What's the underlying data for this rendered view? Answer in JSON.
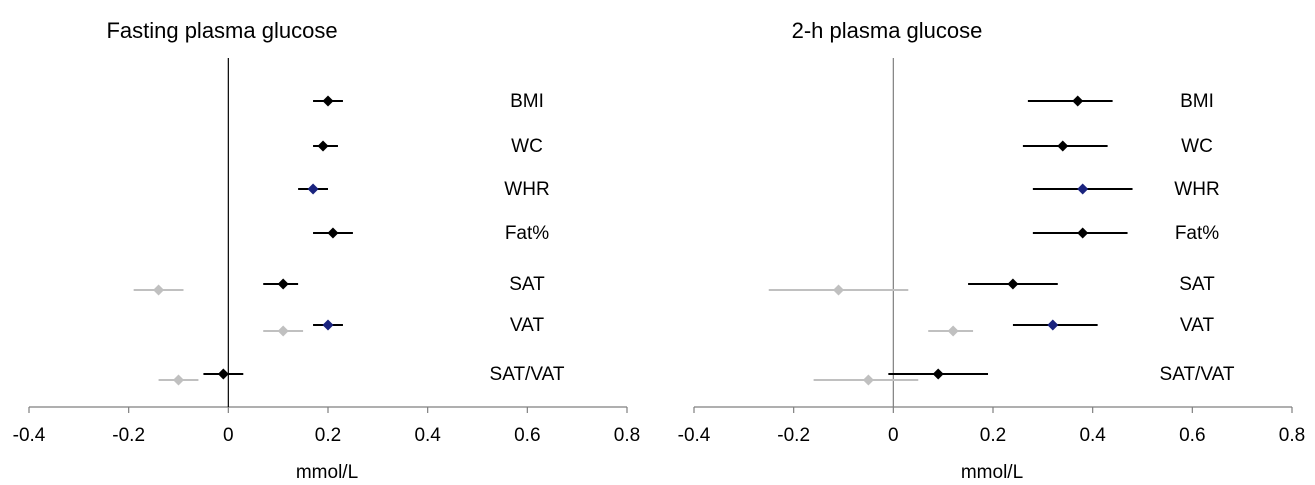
{
  "chart_data": [
    {
      "type": "forest",
      "title": "Fasting plasma glucose",
      "xlabel": "mmol/L",
      "xlim": [
        -0.4,
        0.8
      ],
      "xticks": [
        "-0.4",
        "-0.2",
        "0",
        "0.2",
        "0.4",
        "0.6",
        "0.8"
      ],
      "grid": false,
      "colors": {
        "main": "#000000",
        "highlight": "#1a237e",
        "grey": "#c0c0c0"
      },
      "rows": [
        {
          "label": "BMI",
          "points": [
            {
              "est": 0.2,
              "lo": 0.17,
              "hi": 0.23,
              "color": "main"
            }
          ]
        },
        {
          "label": "WC",
          "points": [
            {
              "est": 0.19,
              "lo": 0.17,
              "hi": 0.22,
              "color": "main"
            }
          ]
        },
        {
          "label": "WHR",
          "points": [
            {
              "est": 0.17,
              "lo": 0.14,
              "hi": 0.2,
              "color": "highlight"
            }
          ]
        },
        {
          "label": "Fat%",
          "points": [
            {
              "est": 0.21,
              "lo": 0.17,
              "hi": 0.25,
              "color": "main"
            }
          ]
        },
        {
          "label": "SAT",
          "points": [
            {
              "est": 0.11,
              "lo": 0.07,
              "hi": 0.14,
              "color": "main"
            },
            {
              "est": -0.14,
              "lo": -0.19,
              "hi": -0.09,
              "color": "grey"
            }
          ]
        },
        {
          "label": "VAT",
          "points": [
            {
              "est": 0.2,
              "lo": 0.17,
              "hi": 0.23,
              "color": "highlight"
            },
            {
              "est": 0.11,
              "lo": 0.07,
              "hi": 0.15,
              "color": "grey"
            }
          ]
        },
        {
          "label": "SAT/VAT",
          "points": [
            {
              "est": -0.01,
              "lo": -0.05,
              "hi": 0.03,
              "color": "main"
            },
            {
              "est": -0.1,
              "lo": -0.14,
              "hi": -0.06,
              "color": "grey"
            }
          ]
        }
      ]
    },
    {
      "type": "forest",
      "title": "2-h plasma glucose",
      "xlabel": "mmol/L",
      "xlim": [
        -0.4,
        0.8
      ],
      "xticks": [
        "-0.4",
        "-0.2",
        "0",
        "0.2",
        "0.4",
        "0.6",
        "0.8"
      ],
      "grid": false,
      "colors": {
        "main": "#000000",
        "highlight": "#1a237e",
        "grey": "#c0c0c0"
      },
      "rows": [
        {
          "label": "BMI",
          "points": [
            {
              "est": 0.37,
              "lo": 0.27,
              "hi": 0.44,
              "color": "main"
            }
          ]
        },
        {
          "label": "WC",
          "points": [
            {
              "est": 0.34,
              "lo": 0.26,
              "hi": 0.43,
              "color": "main"
            }
          ]
        },
        {
          "label": "WHR",
          "points": [
            {
              "est": 0.38,
              "lo": 0.28,
              "hi": 0.48,
              "color": "highlight"
            }
          ]
        },
        {
          "label": "Fat%",
          "points": [
            {
              "est": 0.38,
              "lo": 0.28,
              "hi": 0.47,
              "color": "main"
            }
          ]
        },
        {
          "label": "SAT",
          "points": [
            {
              "est": 0.24,
              "lo": 0.15,
              "hi": 0.33,
              "color": "main"
            },
            {
              "est": -0.11,
              "lo": -0.25,
              "hi": 0.03,
              "color": "grey"
            }
          ]
        },
        {
          "label": "VAT",
          "points": [
            {
              "est": 0.32,
              "lo": 0.24,
              "hi": 0.41,
              "color": "highlight"
            },
            {
              "est": 0.12,
              "lo": 0.07,
              "hi": 0.16,
              "color": "grey"
            }
          ]
        },
        {
          "label": "SAT/VAT",
          "points": [
            {
              "est": 0.09,
              "lo": -0.01,
              "hi": 0.19,
              "color": "main"
            },
            {
              "est": -0.05,
              "lo": -0.16,
              "hi": 0.05,
              "color": "grey"
            }
          ]
        }
      ]
    }
  ]
}
